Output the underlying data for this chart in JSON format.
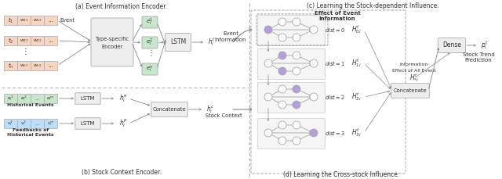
{
  "bg": "#ffffff",
  "salmon": "#f8d5c0",
  "green_cell": "#c8e6c9",
  "blue_cell": "#bbdefb",
  "gray_box": "#eeeeee",
  "gray_box2": "#e8e8e8",
  "purple": "#b39ddb",
  "arrow": "#888888",
  "dark": "#333333",
  "border": "#aaaaaa",
  "sec_a": "(a) Event Information Encoder.",
  "sec_b": "(b) Stock Context Encoder.",
  "sec_c": "(c) Learning the Stock-dependent Influence.",
  "sec_d": "(d) Learning the Cross-stock Influence."
}
